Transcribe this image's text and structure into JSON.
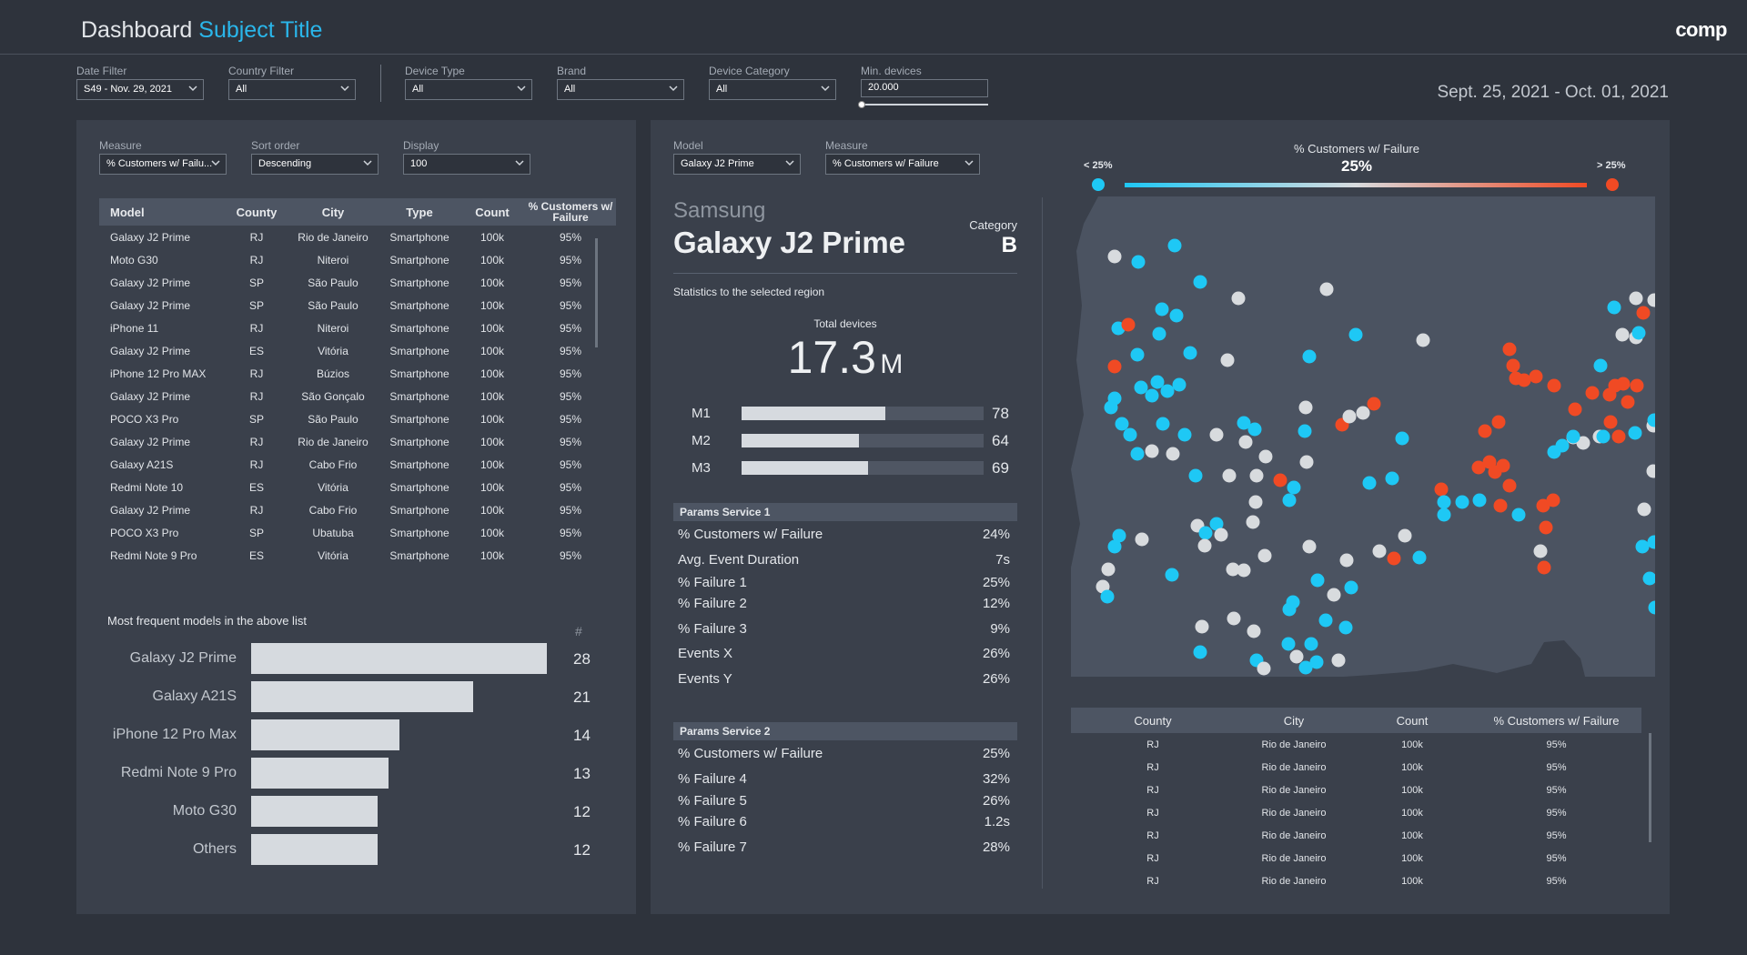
{
  "header": {
    "title_main": "Dashboard",
    "title_accent": "Subject Title",
    "logo": "comp"
  },
  "filters": {
    "date": {
      "label": "Date Filter",
      "value": "S49 - Nov. 29, 2021"
    },
    "country": {
      "label": "Country Filter",
      "value": "All"
    },
    "device_type": {
      "label": "Device Type",
      "value": "All"
    },
    "brand": {
      "label": "Brand",
      "value": "All"
    },
    "device_category": {
      "label": "Device Category",
      "value": "All"
    },
    "min_devices": {
      "label": "Min. devices",
      "value": "20.000",
      "slider_fraction": 0
    },
    "date_range": "Sept. 25, 2021 - Oct. 01, 2021"
  },
  "left": {
    "controls": {
      "measure": {
        "label": "Measure",
        "value": "% Customers w/ Failu..."
      },
      "sort": {
        "label": "Sort order",
        "value": "Descending"
      },
      "display": {
        "label": "Display",
        "value": "100"
      }
    },
    "table": {
      "headers": [
        "Model",
        "County",
        "City",
        "Type",
        "Count",
        "% Customers w/ Failure"
      ],
      "rows": [
        [
          "Galaxy J2 Prime",
          "RJ",
          "Rio de Janeiro",
          "Smartphone",
          "100k",
          "95%"
        ],
        [
          "Moto G30",
          "RJ",
          "Niteroi",
          "Smartphone",
          "100k",
          "95%"
        ],
        [
          "Galaxy J2 Prime",
          "SP",
          "São Paulo",
          "Smartphone",
          "100k",
          "95%"
        ],
        [
          "Galaxy J2 Prime",
          "SP",
          "São Paulo",
          "Smartphone",
          "100k",
          "95%"
        ],
        [
          "iPhone 11",
          "RJ",
          "Niteroi",
          "Smartphone",
          "100k",
          "95%"
        ],
        [
          "Galaxy J2 Prime",
          "ES",
          "Vitória",
          "Smartphone",
          "100k",
          "95%"
        ],
        [
          "iPhone 12 Pro MAX",
          "RJ",
          "Búzios",
          "Smartphone",
          "100k",
          "95%"
        ],
        [
          "Galaxy J2 Prime",
          "RJ",
          "São Gonçalo",
          "Smartphone",
          "100k",
          "95%"
        ],
        [
          "POCO X3 Pro",
          "SP",
          "São Paulo",
          "Smartphone",
          "100k",
          "95%"
        ],
        [
          "Galaxy J2 Prime",
          "RJ",
          "Rio de Janeiro",
          "Smartphone",
          "100k",
          "95%"
        ],
        [
          "Galaxy A21S",
          "RJ",
          "Cabo Frio",
          "Smartphone",
          "100k",
          "95%"
        ],
        [
          "Redmi Note 10",
          "ES",
          "Vitória",
          "Smartphone",
          "100k",
          "95%"
        ],
        [
          "Galaxy J2 Prime",
          "RJ",
          "Cabo Frio",
          "Smartphone",
          "100k",
          "95%"
        ],
        [
          "POCO X3 Pro",
          "SP",
          "Ubatuba",
          "Smartphone",
          "100k",
          "95%"
        ],
        [
          "Redmi Note 9 Pro",
          "ES",
          "Vitória",
          "Smartphone",
          "100k",
          "95%"
        ]
      ]
    },
    "freq_title": "Most frequent models in the above list",
    "freq_count_header": "#"
  },
  "chart_data": {
    "type": "bar",
    "orientation": "horizontal",
    "title": "Most frequent models in the above list",
    "categories": [
      "Galaxy J2 Prime",
      "Galaxy A21S",
      "iPhone 12 Pro Max",
      "Redmi Note 9 Pro",
      "Moto G30",
      "Others"
    ],
    "values": [
      28,
      21,
      14,
      13,
      12,
      12
    ]
  },
  "right": {
    "controls": {
      "model": {
        "label": "Model",
        "value": "Galaxy J2 Prime"
      },
      "measure": {
        "label": "Measure",
        "value": "% Customers w/ Failure"
      }
    },
    "brand": "Samsung",
    "model_name": "Galaxy J2 Prime",
    "category_label": "Category",
    "category_value": "B",
    "stats_caption": "Statistics to the selected region",
    "total_label": "Total devices",
    "total_value": "17.3",
    "total_unit": "M",
    "metrics": [
      {
        "label": "M1",
        "value": 78
      },
      {
        "label": "M2",
        "value": 64
      },
      {
        "label": "M3",
        "value": 69
      }
    ],
    "service1": {
      "title": "Params Service 1",
      "rows": [
        [
          "% Customers w/ Failure",
          "24%"
        ],
        [
          "Avg. Event Duration",
          "7s"
        ],
        [
          "% Failure 1",
          "25%"
        ],
        [
          "% Failure 2",
          "12%"
        ],
        [
          "% Failure 3",
          "9%"
        ],
        [
          "Events X",
          "26%"
        ],
        [
          "Events Y",
          "26%"
        ]
      ]
    },
    "service2": {
      "title": "Params Service 2",
      "rows": [
        [
          "% Customers w/ Failure",
          "25%"
        ],
        [
          "% Failure 4",
          "32%"
        ],
        [
          "% Failure 5",
          "26%"
        ],
        [
          "% Failure 6",
          "1.2s"
        ],
        [
          "% Failure 7",
          "28%"
        ]
      ]
    },
    "map": {
      "legend_title": "% Customers w/ Failure",
      "legend_value": "25%",
      "legend_low": "< 25%",
      "legend_high": "> 25%",
      "colors": {
        "low": "#1ec8f5",
        "mid": "#d8dbde",
        "high": "#f04a24",
        "land": "#4b5361"
      }
    },
    "region_table": {
      "headers": [
        "County",
        "City",
        "Count",
        "% Customers w/ Failure"
      ],
      "rows": [
        [
          "RJ",
          "Rio de Janeiro",
          "100k",
          "95%"
        ],
        [
          "RJ",
          "Rio de Janeiro",
          "100k",
          "95%"
        ],
        [
          "RJ",
          "Rio de Janeiro",
          "100k",
          "95%"
        ],
        [
          "RJ",
          "Rio de Janeiro",
          "100k",
          "95%"
        ],
        [
          "RJ",
          "Rio de Janeiro",
          "100k",
          "95%"
        ],
        [
          "RJ",
          "Rio de Janeiro",
          "100k",
          "95%"
        ],
        [
          "RJ",
          "Rio de Janeiro",
          "100k",
          "95%"
        ]
      ]
    }
  }
}
